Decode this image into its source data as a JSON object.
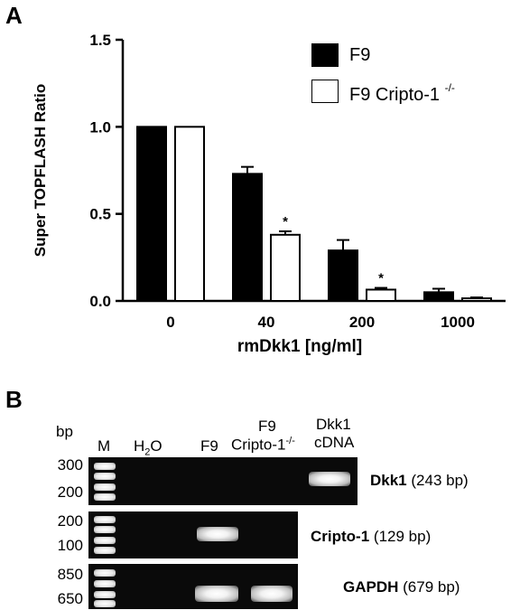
{
  "panel_a_label": "A",
  "panel_b_label": "B",
  "chart_data": {
    "type": "bar",
    "title": "",
    "xlabel": "rmDkk1 [ng/ml]",
    "ylabel": "Super TOPFLASH Ratio",
    "ylim": [
      0,
      1.5
    ],
    "yticks": [
      "0.0",
      "0.5",
      "1.0",
      "1.5"
    ],
    "categories": [
      "0",
      "40",
      "200",
      "1000"
    ],
    "legend_position": "top-right",
    "series": [
      {
        "name": "F9",
        "color": "#000000",
        "values": [
          1.0,
          0.73,
          0.29,
          0.05
        ],
        "errors": [
          0.0,
          0.04,
          0.06,
          0.02
        ]
      },
      {
        "name": "F9 Cripto-1 -/-",
        "color": "#ffffff",
        "values": [
          1.0,
          0.38,
          0.065,
          0.015
        ],
        "errors": [
          0.0,
          0.02,
          0.01,
          0.005
        ]
      }
    ],
    "significance_marks": [
      {
        "category": "40",
        "series": "F9 Cripto-1 -/-",
        "text": "*"
      },
      {
        "category": "200",
        "series": "F9 Cripto-1 -/-",
        "text": "*"
      }
    ]
  },
  "legend": {
    "f9": "F9",
    "ko_prefix": "F9 Cripto-1",
    "ko_sup": "-/-"
  },
  "gel": {
    "bp_header": "bp",
    "lanes": {
      "m": "M",
      "h2o_h": "H",
      "h2o_sub": "2",
      "h2o_o": "O",
      "f9": "F9",
      "ko_line1": "F9",
      "ko_line2": "Cripto-1",
      "ko_sup": "-/-",
      "dkk_line1": "Dkk1",
      "dkk_line2": "cDNA"
    },
    "rows": [
      {
        "bp_top": "300",
        "bp_bottom": "200",
        "gene": "Dkk1",
        "size": "(243 bp)"
      },
      {
        "bp_top": "200",
        "bp_bottom": "100",
        "gene": "Cripto-1",
        "size": "(129 bp)"
      },
      {
        "bp_top": "850",
        "bp_bottom": "650",
        "gene": "GAPDH",
        "size": "(679 bp)"
      }
    ]
  }
}
